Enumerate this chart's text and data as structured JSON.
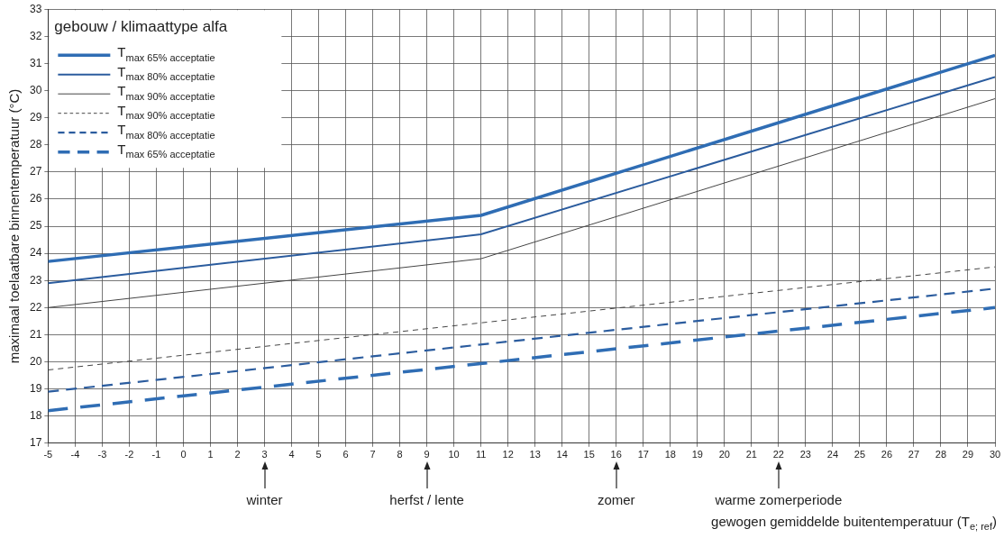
{
  "chart_data": {
    "type": "line",
    "xlabel": "gewogen gemiddelde buitentemperatuur (T$_{e; ref}$)",
    "ylabel": "maximaal toelaatbare binnentemperatuur (°C)",
    "legend_title": "gebouw / klimaattype alfa",
    "legend": "top left",
    "grid": true,
    "marker": "none",
    "xlim": [
      -5,
      30
    ],
    "xticks": [
      -5,
      -4,
      -3,
      -2,
      -1,
      0,
      1,
      2,
      3,
      4,
      5,
      6,
      7,
      8,
      9,
      10,
      11,
      12,
      13,
      14,
      15,
      16,
      17,
      18,
      19,
      20,
      21,
      22,
      23,
      24,
      25,
      26,
      27,
      28,
      29,
      30
    ],
    "ylim": [
      17,
      33
    ],
    "yticks": [
      17,
      18,
      19,
      20,
      21,
      22,
      23,
      24,
      25,
      26,
      27,
      28,
      29,
      30,
      31,
      32,
      33
    ],
    "series": [
      {
        "name": "T$_{max 65% acceptatie}$",
        "color": "#2f6db4",
        "line_style": "solid",
        "x": [
          -5,
          11,
          30
        ],
        "values": [
          23.7,
          25.4,
          31.3
        ]
      },
      {
        "name": "T$_{max 80% acceptatie}$",
        "color": "#2b5c9e",
        "line_style": "solid",
        "x": [
          -5,
          11,
          30
        ],
        "values": [
          22.9,
          24.7,
          30.5
        ]
      },
      {
        "name": "T$_{max 90% acceptatie}$",
        "color": "#454545",
        "line_style": "solid",
        "x": [
          -5,
          11,
          30
        ],
        "values": [
          22.0,
          23.8,
          29.7
        ]
      },
      {
        "name": "T$_{max 90% acceptatie}$",
        "color": "#454545",
        "line_style": "dashed",
        "x": [
          -5,
          30
        ],
        "values": [
          19.7,
          23.5
        ]
      },
      {
        "name": "T$_{max 80% acceptatie}$",
        "color": "#2b5c9e",
        "line_style": "dashed",
        "x": [
          -5,
          30
        ],
        "values": [
          18.9,
          22.7
        ]
      },
      {
        "name": "T$_{max 65% acceptatie}$",
        "color": "#2f6db4",
        "line_style": "dashed",
        "x": [
          -5,
          30
        ],
        "values": [
          18.2,
          22.0
        ]
      }
    ],
    "annotations": [
      "winter",
      "herfst / lente",
      "zomer",
      "warme zomerperiode"
    ]
  }
}
